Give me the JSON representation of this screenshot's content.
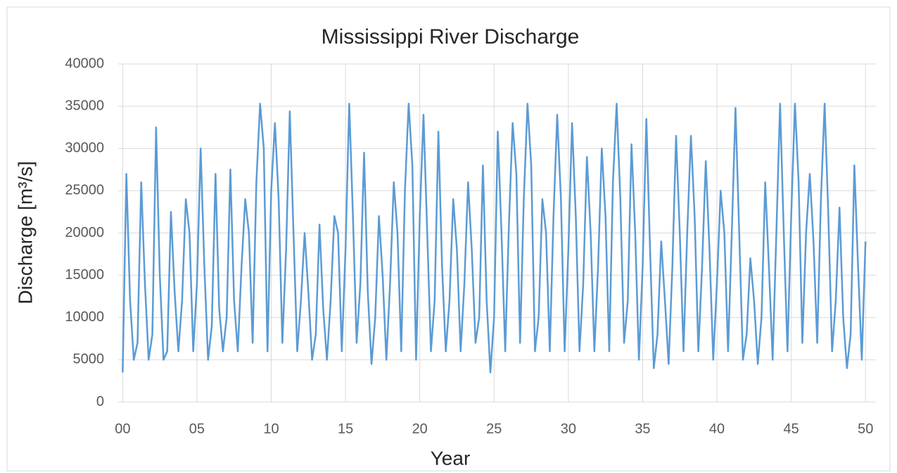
{
  "chart_data": {
    "type": "line",
    "title": "Mississippi River Discharge",
    "x_label": "Year",
    "y_label": "Discharge [m³/s]",
    "color": "#5b9bd5",
    "grid": true,
    "xlim": [
      -0.3,
      50.7
    ],
    "ylim": [
      0,
      40000
    ],
    "xticks": [
      {
        "value": 0,
        "label": "00"
      },
      {
        "value": 5,
        "label": "05"
      },
      10,
      15,
      20,
      25,
      30,
      35,
      40,
      45,
      50
    ],
    "yticks": [
      0,
      5000,
      10000,
      15000,
      20000,
      25000,
      30000,
      35000,
      40000
    ],
    "x": [
      0,
      0.25,
      0.5,
      0.75,
      1,
      1.25,
      1.5,
      1.75,
      2,
      2.25,
      2.5,
      2.75,
      3,
      3.25,
      3.5,
      3.75,
      4,
      4.25,
      4.5,
      4.75,
      5,
      5.25,
      5.5,
      5.75,
      6,
      6.25,
      6.5,
      6.75,
      7,
      7.25,
      7.5,
      7.75,
      8,
      8.25,
      8.5,
      8.75,
      9,
      9.25,
      9.5,
      9.75,
      10,
      10.25,
      10.5,
      10.75,
      11,
      11.25,
      11.5,
      11.75,
      12,
      12.25,
      12.5,
      12.75,
      13,
      13.25,
      13.5,
      13.75,
      14,
      14.25,
      14.5,
      14.75,
      15,
      15.25,
      15.5,
      15.75,
      16,
      16.25,
      16.5,
      16.75,
      17,
      17.25,
      17.5,
      17.75,
      18,
      18.25,
      18.5,
      18.75,
      19,
      19.25,
      19.5,
      19.75,
      20,
      20.25,
      20.5,
      20.75,
      21,
      21.25,
      21.5,
      21.75,
      22,
      22.25,
      22.5,
      22.75,
      23,
      23.25,
      23.5,
      23.75,
      24,
      24.25,
      24.5,
      24.75,
      25,
      25.25,
      25.5,
      25.75,
      26,
      26.25,
      26.5,
      26.75,
      27,
      27.25,
      27.5,
      27.75,
      28,
      28.25,
      28.5,
      28.75,
      29,
      29.25,
      29.5,
      29.75,
      30,
      30.25,
      30.5,
      30.75,
      31,
      31.25,
      31.5,
      31.75,
      32,
      32.25,
      32.5,
      32.75,
      33,
      33.25,
      33.5,
      33.75,
      34,
      34.25,
      34.5,
      34.75,
      35,
      35.25,
      35.5,
      35.75,
      36,
      36.25,
      36.5,
      36.75,
      37,
      37.25,
      37.5,
      37.75,
      38,
      38.25,
      38.5,
      38.75,
      39,
      39.25,
      39.5,
      39.75,
      40,
      40.25,
      40.5,
      40.75,
      41,
      41.25,
      41.5,
      41.75,
      42,
      42.25,
      42.5,
      42.75,
      43,
      43.25,
      43.5,
      43.75,
      44,
      44.25,
      44.5,
      44.75,
      45,
      45.25,
      45.5,
      45.75,
      46,
      46.25,
      46.5,
      46.75,
      47,
      47.25,
      47.5,
      47.75,
      48,
      48.25,
      48.5,
      48.75,
      49,
      49.25,
      49.5,
      49.75,
      50
    ],
    "values": [
      3500,
      27000,
      12000,
      5000,
      7000,
      26000,
      14000,
      5000,
      8000,
      32500,
      15000,
      5000,
      6000,
      22500,
      13000,
      6000,
      12000,
      24000,
      20000,
      6000,
      14000,
      30000,
      16000,
      5000,
      9000,
      27000,
      11000,
      6000,
      10000,
      27500,
      12000,
      6000,
      16000,
      24000,
      20000,
      7000,
      26000,
      35300,
      30000,
      6000,
      25000,
      33000,
      24000,
      7000,
      18000,
      34400,
      20000,
      6000,
      12000,
      20000,
      13000,
      5000,
      8000,
      21000,
      11000,
      5000,
      12000,
      22000,
      20000,
      6000,
      18000,
      35300,
      22000,
      7000,
      14000,
      29500,
      13000,
      4500,
      10000,
      22000,
      15000,
      5000,
      14000,
      26000,
      20000,
      6000,
      25000,
      35300,
      28000,
      5000,
      22000,
      34000,
      20000,
      6000,
      12000,
      32000,
      16000,
      6000,
      12000,
      24000,
      18000,
      6000,
      14000,
      26000,
      18000,
      7000,
      10000,
      28000,
      12000,
      3500,
      10000,
      32000,
      20000,
      6000,
      21000,
      33000,
      27000,
      7000,
      24000,
      35300,
      28000,
      6000,
      10000,
      24000,
      20000,
      6000,
      22000,
      34000,
      24000,
      6000,
      18000,
      33000,
      22000,
      6000,
      14000,
      29000,
      20000,
      6000,
      16000,
      30000,
      22000,
      6000,
      26000,
      35300,
      24000,
      7000,
      12000,
      30500,
      20000,
      5000,
      16000,
      33500,
      18000,
      4000,
      8000,
      19000,
      12000,
      4500,
      16000,
      31500,
      20000,
      6000,
      20000,
      31500,
      22000,
      6000,
      16000,
      28500,
      18000,
      5000,
      14000,
      25000,
      20000,
      6000,
      20000,
      34800,
      20000,
      5000,
      8000,
      17000,
      12000,
      4500,
      10000,
      26000,
      16000,
      5000,
      20000,
      35300,
      20000,
      6000,
      22000,
      35300,
      26000,
      7000,
      20000,
      27000,
      19000,
      7000,
      24000,
      35300,
      22000,
      6000,
      12000,
      23000,
      10000,
      4000,
      8000,
      28000,
      16000,
      5000,
      19000
    ]
  }
}
